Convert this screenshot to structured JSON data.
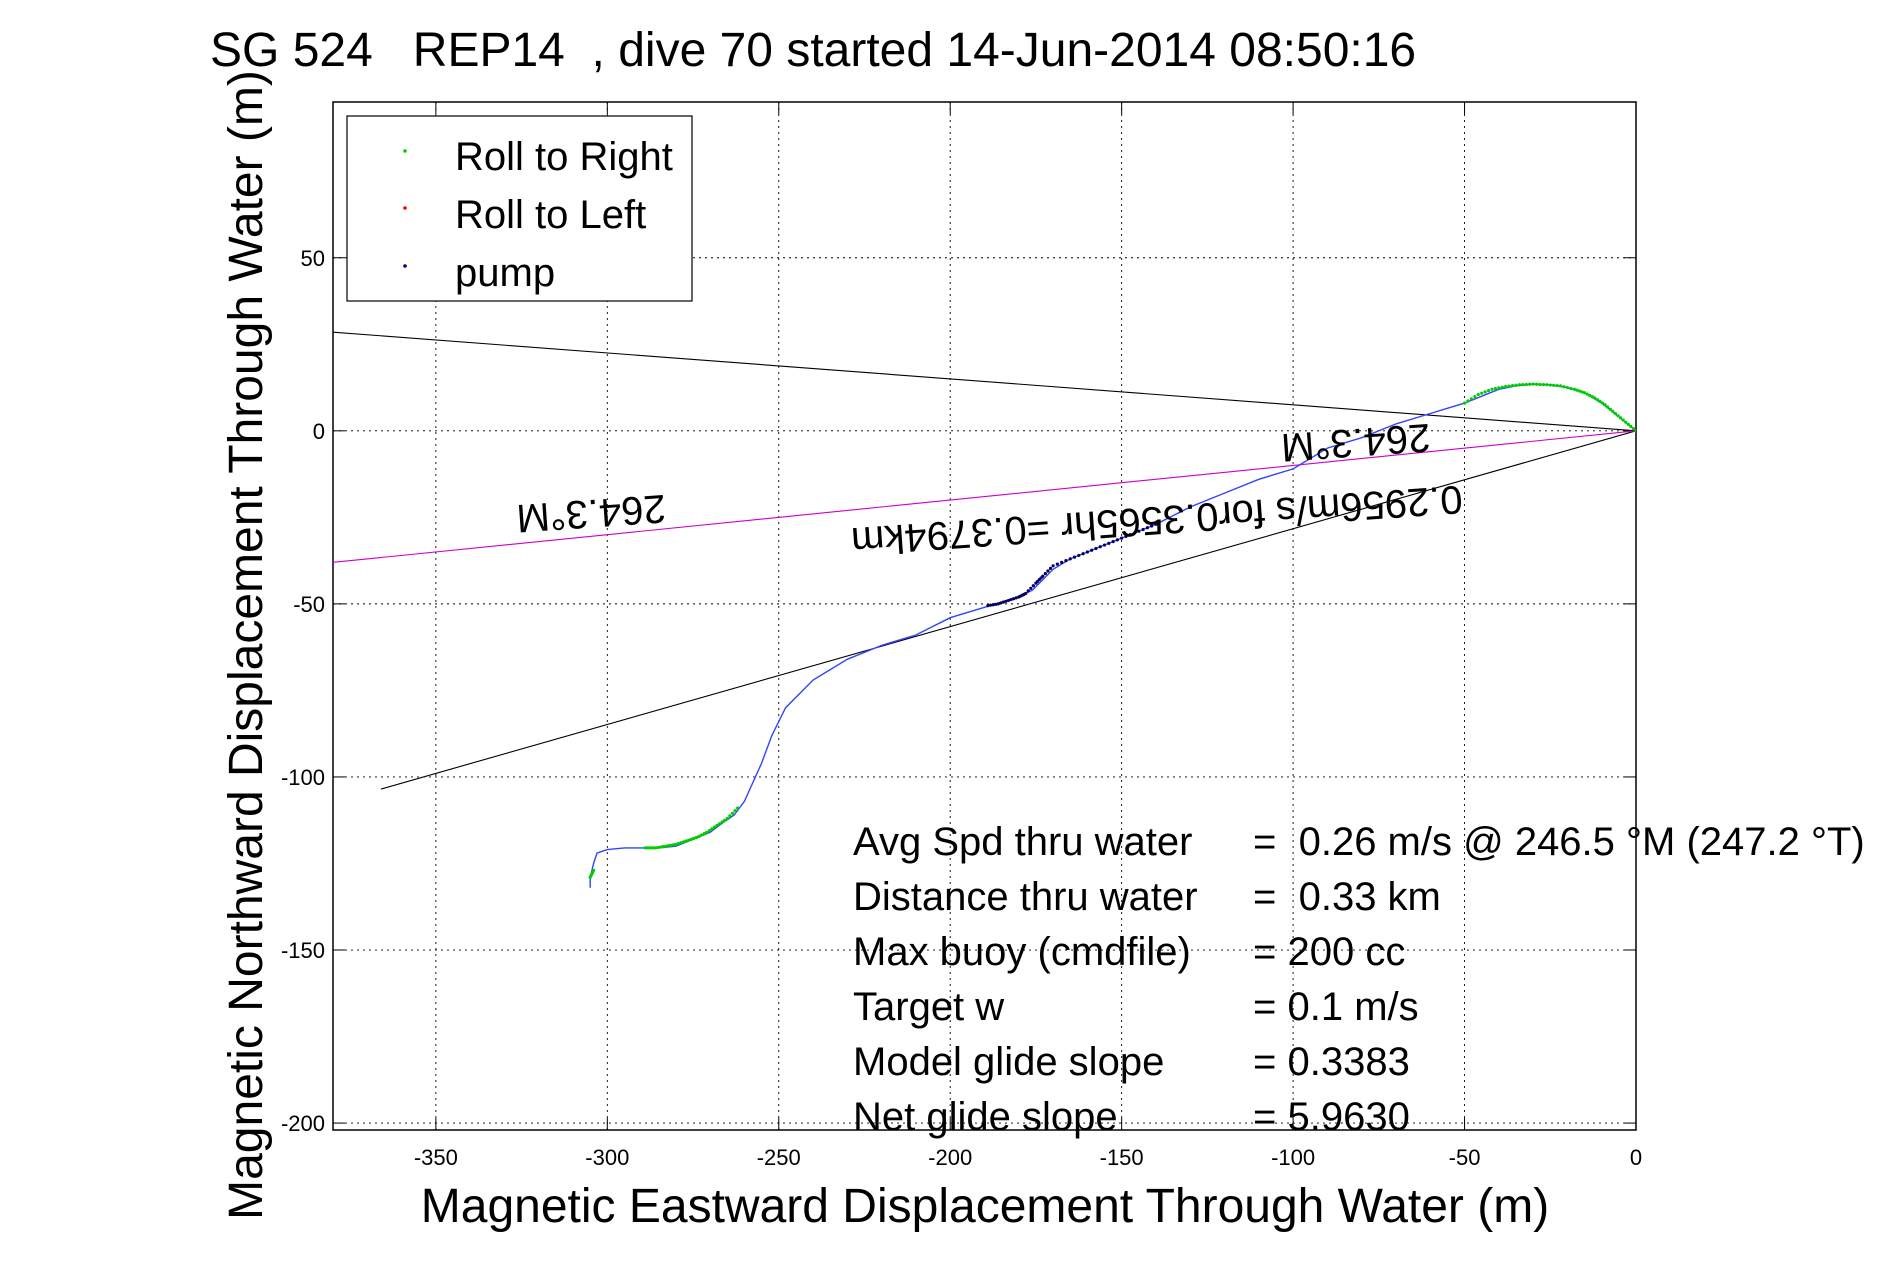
{
  "chart_data": {
    "type": "scatter",
    "title": "SG 524   REP14  , dive 70 started 14-Jun-2014 08:50:16",
    "xlabel": "Magnetic Eastward Displacement Through Water (m)",
    "ylabel": "Magnetic Northward Displacement Through Water (m)",
    "xlim": [
      -380,
      0
    ],
    "ylim": [
      -202,
      95
    ],
    "xticks": [
      -350,
      -300,
      -250,
      -200,
      -150,
      -100,
      -50,
      0
    ],
    "yticks": [
      50,
      0,
      -50,
      -100,
      -150,
      -200
    ],
    "grid": true,
    "legend_position": "top-left",
    "legend": [
      {
        "label": "Roll to Right",
        "color": "#00cc00"
      },
      {
        "label": "Roll to Left",
        "color": "#ff0000"
      },
      {
        "label": "pump",
        "color": "#000066"
      }
    ],
    "track": {
      "color": "#3344ff",
      "x": [
        0,
        -5,
        -10,
        -15,
        -20,
        -25,
        -30,
        -35,
        -40,
        -45,
        -50,
        -55,
        -60,
        -70,
        -80,
        -90,
        -100,
        -110,
        -120,
        -130,
        -140,
        -150,
        -155,
        -160,
        -165,
        -170,
        -173,
        -176,
        -180,
        -185,
        -190,
        -200,
        -210,
        -220,
        -230,
        -240,
        -248,
        -252,
        -255,
        -260,
        -263,
        -266,
        -270,
        -275,
        -280,
        -285,
        -290,
        -295,
        -300,
        -303,
        -304,
        -305,
        -305
      ],
      "y": [
        0,
        4,
        8,
        11,
        12.5,
        13.3,
        13.5,
        13,
        12,
        10,
        8,
        6.5,
        5,
        2,
        -2,
        -5,
        -11,
        -14,
        -18,
        -22,
        -27,
        -31,
        -33,
        -35,
        -37,
        -40,
        -43,
        -46,
        -48,
        -49.5,
        -51,
        -54,
        -59,
        -62,
        -66,
        -72,
        -80,
        -88,
        -96,
        -107,
        -111,
        -113,
        -116,
        -118,
        -120,
        -120.5,
        -120.5,
        -120.5,
        -121,
        -122,
        -125,
        -129,
        -132
      ]
    },
    "roll_right": [
      {
        "x": [
          0,
          -3,
          -6,
          -9,
          -12,
          -15,
          -18,
          -22,
          -26,
          -30,
          -34,
          -38,
          -42,
          -46,
          -50
        ],
        "y": [
          0,
          2.5,
          5,
          7.5,
          9.5,
          11,
          12,
          13,
          13.3,
          13.5,
          13.3,
          12.8,
          12,
          10.5,
          8
        ]
      },
      {
        "x": [
          -262,
          -265,
          -268,
          -271,
          -274,
          -277,
          -280,
          -283,
          -286,
          -289
        ],
        "y": [
          -109,
          -112,
          -114,
          -116,
          -117.5,
          -118.5,
          -119.5,
          -120,
          -120.5,
          -120.5
        ]
      },
      {
        "x": [
          -304,
          -305
        ],
        "y": [
          -127,
          -129
        ]
      }
    ],
    "pump": [
      {
        "x": [
          -140,
          -145,
          -150,
          -155,
          -160,
          -165,
          -170,
          -173,
          -175,
          -178,
          -180,
          -183,
          -186,
          -189
        ],
        "y": [
          -27,
          -29,
          -31,
          -33,
          -35,
          -37,
          -39,
          -42,
          -44,
          -47,
          -48,
          -49,
          -50,
          -50.5
        ]
      }
    ],
    "lines": [
      {
        "color": "#000000",
        "x": [
          0,
          -380
        ],
        "y": [
          0,
          28.5
        ]
      },
      {
        "color": "#000000",
        "x": [
          0,
          -366
        ],
        "y": [
          0,
          -103.5
        ]
      },
      {
        "color": "#cc00cc",
        "x": [
          0,
          -380
        ],
        "y": [
          0,
          -38
        ]
      }
    ],
    "annotations": [
      {
        "text": "264.3°M",
        "x": -82,
        "y": 0.5,
        "upside_down": true
      },
      {
        "text": "264.3°M",
        "x": -305,
        "y": -20,
        "upside_down": true
      },
      {
        "text": "0.2956m/s for0.3565hr =0.3794km",
        "x": -140,
        "y": -22,
        "upside_down": true
      }
    ],
    "stats": [
      {
        "label": "Avg Spd thru water",
        "value": "=  0.26 m/s @ 246.5 °M (247.2 °T)"
      },
      {
        "label": "Distance thru water",
        "value": "=  0.33 km"
      },
      {
        "label": "Max buoy (cmdfile)",
        "value": "= 200 cc"
      },
      {
        "label": "Target w",
        "value": "= 0.1 m/s"
      },
      {
        "label": "Model glide slope",
        "value": "= 0.3383"
      },
      {
        "label": "Net glide slope",
        "value": "= 5.9630"
      }
    ]
  }
}
